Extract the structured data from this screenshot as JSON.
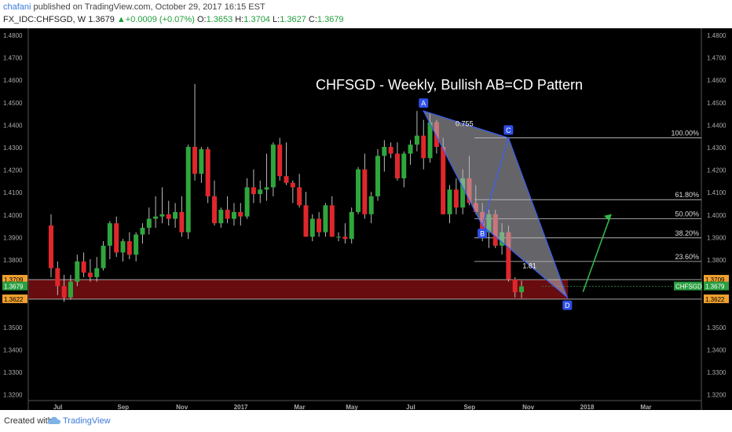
{
  "header": {
    "publisher_user": "chafani",
    "publisher_text": " published on TradingView.com, October 29, 2017 16:15 EST",
    "symbol": "FX_IDC:CHFSGD, W",
    "last": "1.3679",
    "change": "+0.0009 (+0.07%)",
    "o_label": "O:",
    "o": "1.3653",
    "h_label": "H:",
    "h": "1.3704",
    "l_label": "L:",
    "l": "1.3627",
    "c_label": "C:",
    "c": "1.3679"
  },
  "footer": {
    "created_with": "Created with",
    "brand": "TradingView"
  },
  "colors": {
    "background": "#000000",
    "up": "#2fa63c",
    "down": "#e0272c",
    "zone": "#7a0e12",
    "pattern_fill": "#b8b8c0",
    "pattern_line": "#3a5cf0",
    "arrow": "#32b84a",
    "fib_line": "#cccccc",
    "price_tag_orange": "#f0a030",
    "price_tag_green": "#2a9e40"
  },
  "chart_data": {
    "type": "candlestick",
    "title": "CHFSGD - Weekly, Bullish AB=CD Pattern",
    "ylim": [
      1.32,
      1.483
    ],
    "y_ticks": [
      "1.4800",
      "1.4700",
      "1.4600",
      "1.4500",
      "1.4400",
      "1.4300",
      "1.4200",
      "1.4100",
      "1.4000",
      "1.3900",
      "1.3800",
      "1.3500",
      "1.3400",
      "1.3300",
      "1.3200"
    ],
    "x_ticks": [
      {
        "label": "Jul",
        "w": 2
      },
      {
        "label": "Sep",
        "w": 12
      },
      {
        "label": "Nov",
        "w": 21
      },
      {
        "label": "2017",
        "w": 30
      },
      {
        "label": "Mar",
        "w": 39
      },
      {
        "label": "May",
        "w": 47
      },
      {
        "label": "Jul",
        "w": 56
      },
      {
        "label": "Sep",
        "w": 65
      },
      {
        "label": "Nov",
        "w": 74
      },
      {
        "label": "2018",
        "w": 83
      },
      {
        "label": "Mar",
        "w": 92
      }
    ],
    "candles": [
      [
        1.395,
        1.4,
        1.372,
        1.376
      ],
      [
        1.376,
        1.379,
        1.364,
        1.368
      ],
      [
        1.368,
        1.373,
        1.361,
        1.363
      ],
      [
        1.363,
        1.373,
        1.362,
        1.37
      ],
      [
        1.37,
        1.382,
        1.368,
        1.379
      ],
      [
        1.379,
        1.383,
        1.372,
        1.374
      ],
      [
        1.374,
        1.38,
        1.37,
        1.372
      ],
      [
        1.372,
        1.381,
        1.37,
        1.376
      ],
      [
        1.376,
        1.388,
        1.375,
        1.386
      ],
      [
        1.386,
        1.397,
        1.38,
        1.396
      ],
      [
        1.396,
        1.399,
        1.381,
        1.383
      ],
      [
        1.383,
        1.389,
        1.379,
        1.388
      ],
      [
        1.388,
        1.392,
        1.38,
        1.382
      ],
      [
        1.382,
        1.392,
        1.379,
        1.391
      ],
      [
        1.391,
        1.396,
        1.387,
        1.394
      ],
      [
        1.394,
        1.403,
        1.391,
        1.398
      ],
      [
        1.398,
        1.408,
        1.394,
        1.399
      ],
      [
        1.399,
        1.412,
        1.396,
        1.4
      ],
      [
        1.4,
        1.406,
        1.395,
        1.398
      ],
      [
        1.398,
        1.405,
        1.394,
        1.401
      ],
      [
        1.401,
        1.408,
        1.39,
        1.392
      ],
      [
        1.392,
        1.431,
        1.389,
        1.43
      ],
      [
        1.43,
        1.458,
        1.415,
        1.418
      ],
      [
        1.418,
        1.43,
        1.414,
        1.429
      ],
      [
        1.429,
        1.43,
        1.405,
        1.408
      ],
      [
        1.408,
        1.415,
        1.395,
        1.396
      ],
      [
        1.396,
        1.403,
        1.394,
        1.402
      ],
      [
        1.402,
        1.408,
        1.396,
        1.398
      ],
      [
        1.398,
        1.405,
        1.395,
        1.401
      ],
      [
        1.401,
        1.405,
        1.395,
        1.399
      ],
      [
        1.399,
        1.416,
        1.398,
        1.412
      ],
      [
        1.412,
        1.42,
        1.405,
        1.409
      ],
      [
        1.409,
        1.415,
        1.405,
        1.411
      ],
      [
        1.411,
        1.427,
        1.406,
        1.412
      ],
      [
        1.412,
        1.432,
        1.408,
        1.431
      ],
      [
        1.431,
        1.434,
        1.415,
        1.417
      ],
      [
        1.417,
        1.432,
        1.413,
        1.414
      ],
      [
        1.414,
        1.415,
        1.405,
        1.412
      ],
      [
        1.412,
        1.418,
        1.403,
        1.404
      ],
      [
        1.404,
        1.41,
        1.39,
        1.39
      ],
      [
        1.39,
        1.4,
        1.388,
        1.398
      ],
      [
        1.398,
        1.401,
        1.39,
        1.392
      ],
      [
        1.392,
        1.405,
        1.39,
        1.404
      ],
      [
        1.404,
        1.408,
        1.39,
        1.39
      ],
      [
        1.39,
        1.392,
        1.388,
        1.39
      ],
      [
        1.39,
        1.396,
        1.387,
        1.389
      ],
      [
        1.389,
        1.403,
        1.387,
        1.401
      ],
      [
        1.401,
        1.421,
        1.4,
        1.42
      ],
      [
        1.42,
        1.427,
        1.398,
        1.4
      ],
      [
        1.4,
        1.41,
        1.396,
        1.408
      ],
      [
        1.408,
        1.429,
        1.406,
        1.426
      ],
      [
        1.426,
        1.433,
        1.419,
        1.43
      ],
      [
        1.43,
        1.432,
        1.425,
        1.427
      ],
      [
        1.427,
        1.432,
        1.415,
        1.416
      ],
      [
        1.416,
        1.428,
        1.412,
        1.427
      ],
      [
        1.427,
        1.433,
        1.422,
        1.431
      ],
      [
        1.431,
        1.446,
        1.428,
        1.435
      ],
      [
        1.435,
        1.442,
        1.42,
        1.425
      ],
      [
        1.425,
        1.445,
        1.423,
        1.441
      ],
      [
        1.441,
        1.442,
        1.427,
        1.43
      ],
      [
        1.43,
        1.434,
        1.4,
        1.4
      ],
      [
        1.4,
        1.413,
        1.396,
        1.411
      ],
      [
        1.411,
        1.416,
        1.4,
        1.403
      ],
      [
        1.403,
        1.42,
        1.4,
        1.416
      ],
      [
        1.416,
        1.426,
        1.404,
        1.405
      ],
      [
        1.405,
        1.413,
        1.4,
        1.401
      ],
      [
        1.401,
        1.405,
        1.388,
        1.392
      ],
      [
        1.392,
        1.402,
        1.385,
        1.4
      ],
      [
        1.4,
        1.402,
        1.385,
        1.386
      ],
      [
        1.386,
        1.396,
        1.382,
        1.392
      ],
      [
        1.392,
        1.395,
        1.37,
        1.371
      ],
      [
        1.371,
        1.372,
        1.363,
        1.3653
      ],
      [
        1.3653,
        1.3704,
        1.3627,
        1.3679
      ]
    ],
    "fib_levels": [
      {
        "label": "100.00%",
        "price": 1.434
      },
      {
        "label": "61.80%",
        "price": 1.4065
      },
      {
        "label": "50.00%",
        "price": 1.398
      },
      {
        "label": "38.20%",
        "price": 1.3895
      },
      {
        "label": "23.60%",
        "price": 1.379
      }
    ],
    "pattern_points": [
      {
        "label": "A",
        "w": 57,
        "price": 1.446
      },
      {
        "label": "B",
        "w": 66,
        "price": 1.395
      },
      {
        "label": "C",
        "w": 70,
        "price": 1.434
      },
      {
        "label": "D",
        "w": 79,
        "price": 1.363
      }
    ],
    "ratios": [
      {
        "label": "0.755"
      },
      {
        "label": "1.81"
      }
    ],
    "zone": {
      "top": 1.3709,
      "bottom": 1.3622
    },
    "price_labels": {
      "zone_top": "1.3709",
      "last": "1.3679",
      "zone_bottom": "1.3622",
      "symbol": "CHFSGD"
    }
  }
}
